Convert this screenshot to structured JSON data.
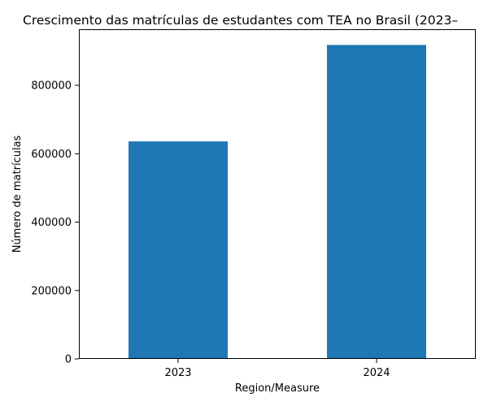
{
  "chart_data": {
    "type": "bar",
    "title": "Crescimento das matrículas de estudantes com TEA no Brasil (2023–",
    "xlabel": "Region/Measure",
    "ylabel": "Número de matrículas",
    "categories": [
      "2023",
      "2024"
    ],
    "values": [
      636000,
      918000
    ],
    "ylim": [
      0,
      964000
    ],
    "yticks": [
      0,
      200000,
      400000,
      600000,
      800000
    ],
    "ytick_labels": [
      "0",
      "200000",
      "400000",
      "600000",
      "800000"
    ],
    "colors": {
      "bar": "#1f77b4",
      "axis": "#000000"
    },
    "grid": false,
    "legend": "none"
  }
}
